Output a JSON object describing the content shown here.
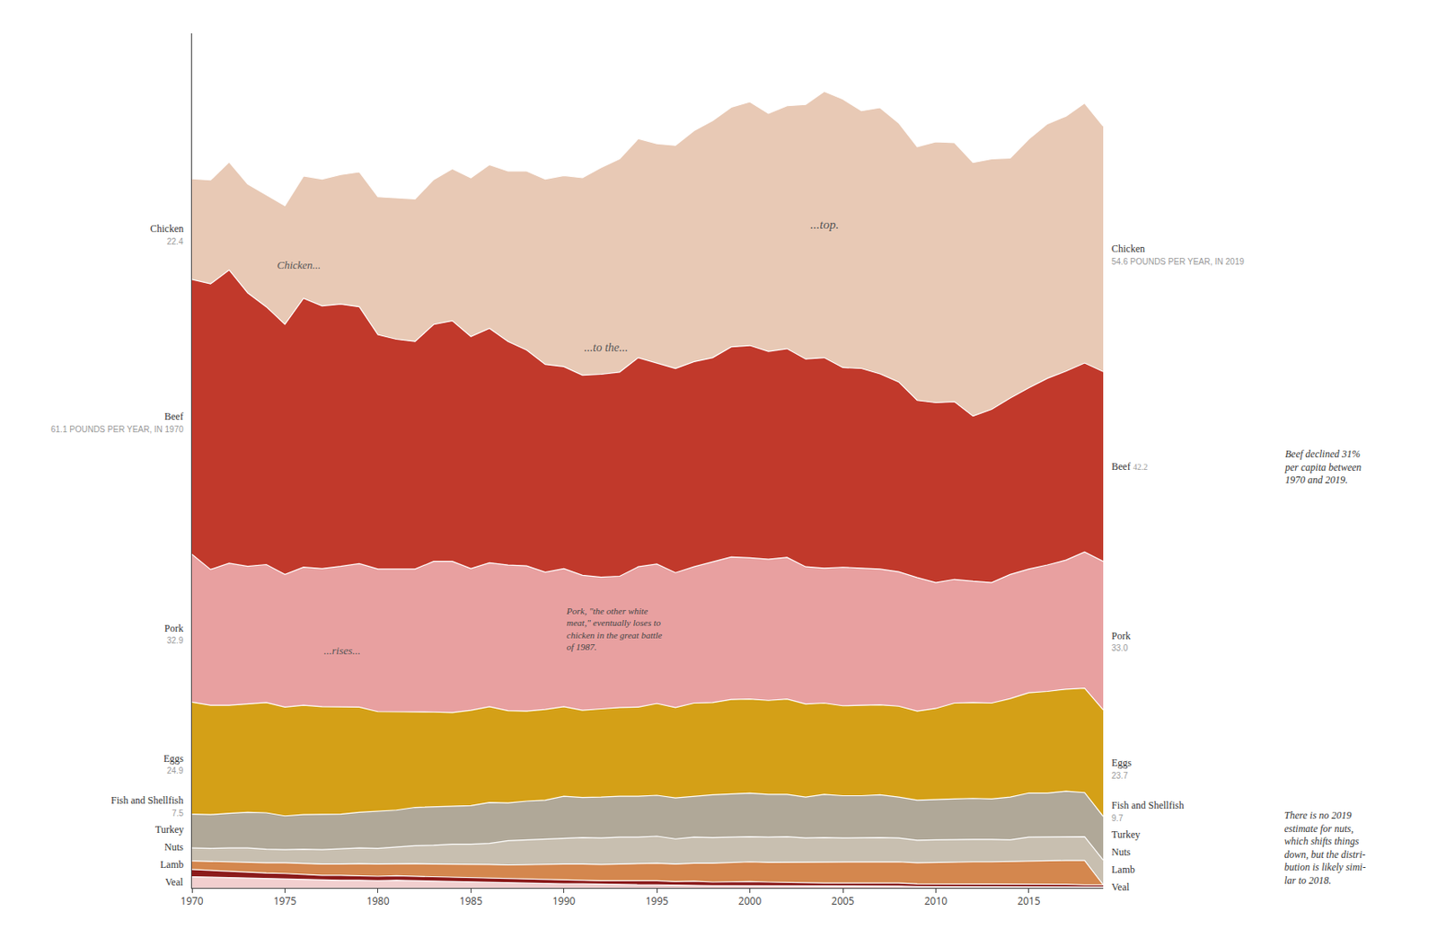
{
  "chart_data": {
    "type": "area",
    "stacked": true,
    "x": [
      1970,
      1971,
      1972,
      1973,
      1974,
      1975,
      1976,
      1977,
      1978,
      1979,
      1980,
      1981,
      1982,
      1983,
      1984,
      1985,
      1986,
      1987,
      1988,
      1989,
      1990,
      1991,
      1992,
      1993,
      1994,
      1995,
      1996,
      1997,
      1998,
      1999,
      2000,
      2001,
      2002,
      2003,
      2004,
      2005,
      2006,
      2007,
      2008,
      2009,
      2010,
      2011,
      2012,
      2013,
      2014,
      2015,
      2016,
      2017,
      2018,
      2019
    ],
    "series": [
      {
        "name": "Veal",
        "color": "#F2CFCF",
        "values": [
          2.5,
          2.4,
          2.2,
          2.1,
          2.0,
          2.0,
          1.8,
          1.7,
          1.7,
          1.7,
          1.6,
          1.7,
          1.6,
          1.6,
          1.5,
          1.4,
          1.2,
          1.2,
          1.1,
          1.0,
          0.9,
          0.9,
          0.8,
          0.7,
          0.7,
          0.7,
          0.6,
          0.6,
          0.5,
          0.5,
          0.5,
          0.5,
          0.4,
          0.4,
          0.4,
          0.4,
          0.4,
          0.4,
          0.4,
          0.3,
          0.3,
          0.3,
          0.3,
          0.3,
          0.3,
          0.3,
          0.3,
          0.3,
          0.2,
          0.2
        ]
      },
      {
        "name": "Lamb",
        "color": "#8B1A1A",
        "values": [
          1.6,
          1.5,
          1.4,
          1.3,
          1.3,
          1.2,
          1.2,
          1.1,
          1.1,
          1.0,
          1.0,
          1.0,
          1.0,
          0.9,
          0.9,
          0.9,
          0.9,
          0.9,
          0.9,
          0.9,
          0.9,
          0.8,
          0.8,
          0.9,
          0.9,
          0.9,
          0.8,
          0.9,
          0.8,
          0.9,
          0.9,
          0.8,
          0.8,
          0.8,
          0.7,
          0.7,
          0.7,
          0.7,
          0.7,
          0.6,
          0.6,
          0.6,
          0.5,
          0.5,
          0.5,
          0.5,
          0.5,
          0.5,
          0.5,
          0.5
        ]
      },
      {
        "name": "Nuts",
        "color": "#D4874E",
        "values": [
          1.9,
          2.0,
          2.1,
          2.2,
          2.3,
          2.4,
          2.4,
          2.5,
          2.5,
          2.7,
          2.7,
          2.7,
          2.8,
          2.8,
          2.9,
          3.0,
          3.1,
          3.0,
          3.2,
          3.3,
          3.5,
          3.6,
          3.6,
          3.7,
          3.8,
          3.9,
          3.9,
          4.0,
          4.2,
          4.3,
          4.4,
          4.4,
          4.5,
          4.6,
          4.6,
          4.6,
          4.7,
          4.7,
          4.7,
          4.7,
          4.8,
          4.9,
          5.0,
          5.0,
          5.1,
          5.2,
          5.2,
          5.3,
          5.4,
          0.0
        ]
      },
      {
        "name": "Turkey",
        "color": "#C8BFB0",
        "values": [
          2.9,
          2.9,
          3.2,
          3.3,
          3.0,
          2.9,
          3.2,
          3.2,
          3.4,
          3.5,
          3.5,
          3.7,
          4.0,
          4.2,
          4.4,
          4.4,
          4.7,
          5.4,
          5.5,
          5.7,
          5.8,
          5.9,
          5.9,
          6.0,
          5.9,
          6.0,
          5.6,
          5.8,
          5.7,
          5.6,
          5.6,
          5.6,
          5.7,
          5.3,
          5.5,
          5.4,
          5.4,
          5.4,
          5.3,
          5.0,
          5.0,
          5.0,
          5.0,
          5.0,
          4.8,
          5.3,
          5.3,
          5.3,
          5.3,
          5.5
        ]
      },
      {
        "name": "Fish and Shellfish",
        "color": "#B0A898",
        "values": [
          7.5,
          7.5,
          7.7,
          7.9,
          8.1,
          7.5,
          7.7,
          7.9,
          7.7,
          7.9,
          8.2,
          8.2,
          8.5,
          8.5,
          8.5,
          8.6,
          9.1,
          8.4,
          8.6,
          8.6,
          9.3,
          8.9,
          9.1,
          9.1,
          9.1,
          9.1,
          9.1,
          9.1,
          9.5,
          9.6,
          9.7,
          9.5,
          9.4,
          9.1,
          9.6,
          9.4,
          9.3,
          9.5,
          9.1,
          8.9,
          9.0,
          9.0,
          9.1,
          9.0,
          9.5,
          9.8,
          9.8,
          10.1,
          9.8,
          9.7
        ]
      },
      {
        "name": "Eggs",
        "color": "#D4A017",
        "values": [
          24.9,
          24.3,
          24.0,
          24.1,
          24.5,
          24.2,
          24.3,
          23.9,
          23.8,
          23.4,
          22.2,
          21.9,
          21.3,
          21.1,
          20.8,
          21.2,
          21.3,
          20.5,
          20.0,
          20.2,
          19.9,
          19.4,
          19.6,
          19.7,
          19.8,
          20.4,
          20.1,
          20.7,
          20.5,
          21.0,
          20.9,
          20.9,
          21.2,
          20.7,
          20.3,
          20.0,
          20.1,
          20.0,
          20.2,
          19.8,
          20.2,
          21.3,
          21.3,
          21.3,
          21.9,
          22.3,
          22.6,
          22.7,
          23.2,
          23.7
        ]
      },
      {
        "name": "Pork",
        "color": "#E8A0A0",
        "values": [
          32.9,
          30.2,
          31.6,
          30.6,
          30.7,
          29.5,
          30.7,
          30.7,
          31.3,
          31.9,
          31.7,
          31.7,
          31.7,
          33.5,
          33.6,
          31.5,
          32.0,
          32.4,
          32.3,
          30.5,
          30.7,
          30.0,
          29.3,
          29.2,
          31.2,
          31.0,
          30.0,
          30.3,
          31.3,
          31.7,
          31.4,
          31.4,
          31.5,
          30.5,
          30.0,
          30.8,
          30.5,
          30.2,
          29.9,
          29.7,
          28.0,
          27.5,
          27.0,
          26.8,
          27.6,
          27.5,
          28.1,
          28.7,
          30.3,
          33.0
        ]
      },
      {
        "name": "Beef",
        "color": "#C1392B",
        "values": [
          61.1,
          63.5,
          65.2,
          60.8,
          57.3,
          55.6,
          59.8,
          58.4,
          58.3,
          57.1,
          52.1,
          51.1,
          50.6,
          52.7,
          53.5,
          51.6,
          52.1,
          49.7,
          48.0,
          46.2,
          44.9,
          44.5,
          45.1,
          45.4,
          46.5,
          44.7,
          45.4,
          45.6,
          45.4,
          46.7,
          47.2,
          46.2,
          46.4,
          46.2,
          46.8,
          44.4,
          44.4,
          43.4,
          42.2,
          39.4,
          40.0,
          39.5,
          36.7,
          38.5,
          39.2,
          40.3,
          41.5,
          42.0,
          42.0,
          42.2
        ]
      },
      {
        "name": "Chicken",
        "color": "#E8C9B5",
        "values": [
          22.4,
          23.1,
          24.0,
          24.2,
          24.9,
          26.4,
          27.2,
          28.2,
          28.8,
          30.0,
          30.7,
          31.4,
          31.7,
          32.2,
          33.8,
          35.3,
          36.4,
          37.9,
          39.8,
          41.2,
          42.5,
          43.9,
          46.0,
          47.4,
          48.7,
          48.8,
          49.6,
          51.4,
          52.7,
          53.3,
          54.2,
          52.9,
          54.0,
          56.6,
          59.2,
          59.7,
          57.3,
          59.2,
          57.6,
          56.4,
          58.0,
          57.6,
          56.4,
          55.7,
          53.4,
          55.3,
          56.6,
          56.7,
          57.8,
          54.6
        ]
      }
    ],
    "xlim": [
      1970,
      2019
    ],
    "xticks": [
      1970,
      1975,
      1980,
      1985,
      1990,
      1995,
      2000,
      2005,
      2010,
      2015
    ],
    "ylim": [
      0,
      190
    ],
    "grid": false,
    "tick_labels": "x",
    "annotations": [
      "61.1 POUNDS PER YEAR, IN 1970",
      "32.9",
      "24.9",
      "22.4",
      "7.5",
      "54.6 POUNDS PER YEAR, IN 2019",
      "42.2",
      "33.0",
      "23.7",
      "9.7",
      "Chicken...",
      "...rises...",
      "...to the...",
      "...top.",
      "Pork, \"the other white\nmeat,\" eventually loses to\nchicken in the great battle\nof 1987.",
      "Beef declined 31%\nper capita between\n1970 and 2019.",
      "There is no 2019\nestimate for nuts,\nwhich shifts things\ndown, but the distri-\nbution is likely simi-\nlar to 2018."
    ]
  }
}
